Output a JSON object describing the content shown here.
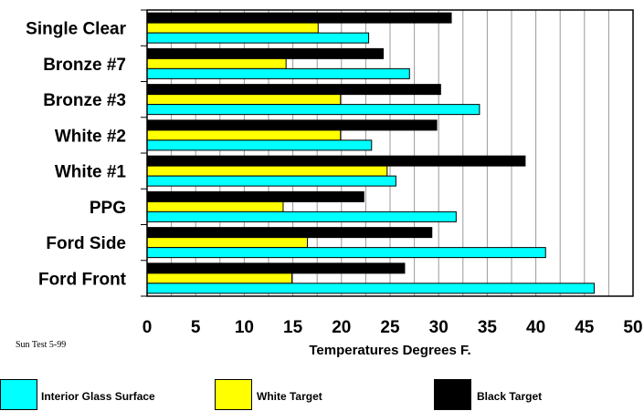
{
  "chart_data": {
    "type": "bar",
    "orientation": "horizontal",
    "categories": [
      "Single Clear",
      "Bronze #7",
      "Bronze #3",
      "White #2",
      "White #1",
      "PPG",
      "Ford Side",
      "Ford Front"
    ],
    "series": [
      {
        "name": "Interior Glass Surface",
        "color": "#00ffff",
        "values": [
          22.8,
          27.0,
          34.2,
          23.1,
          25.6,
          31.8,
          41.0,
          46.0
        ]
      },
      {
        "name": "White Target",
        "color": "#ffff00",
        "values": [
          17.6,
          14.3,
          19.9,
          19.9,
          24.7,
          14.0,
          16.5,
          14.9
        ]
      },
      {
        "name": "Black Target",
        "color": "#000000",
        "values": [
          31.3,
          24.3,
          30.2,
          29.8,
          38.9,
          22.3,
          29.3,
          26.5
        ]
      }
    ],
    "xlabel": "Temperatures Degrees F.",
    "ylabel": "",
    "xlim": [
      0,
      50
    ],
    "xticks": [
      "0",
      "5",
      "10",
      "15",
      "20",
      "25",
      "30",
      "35",
      "40",
      "45",
      "50"
    ],
    "grid": "vertical",
    "legend": "bottom"
  },
  "note": "Sun Test 5-99",
  "legend_items": [
    "Interior Glass Surface",
    "White Target",
    "Black Target"
  ]
}
